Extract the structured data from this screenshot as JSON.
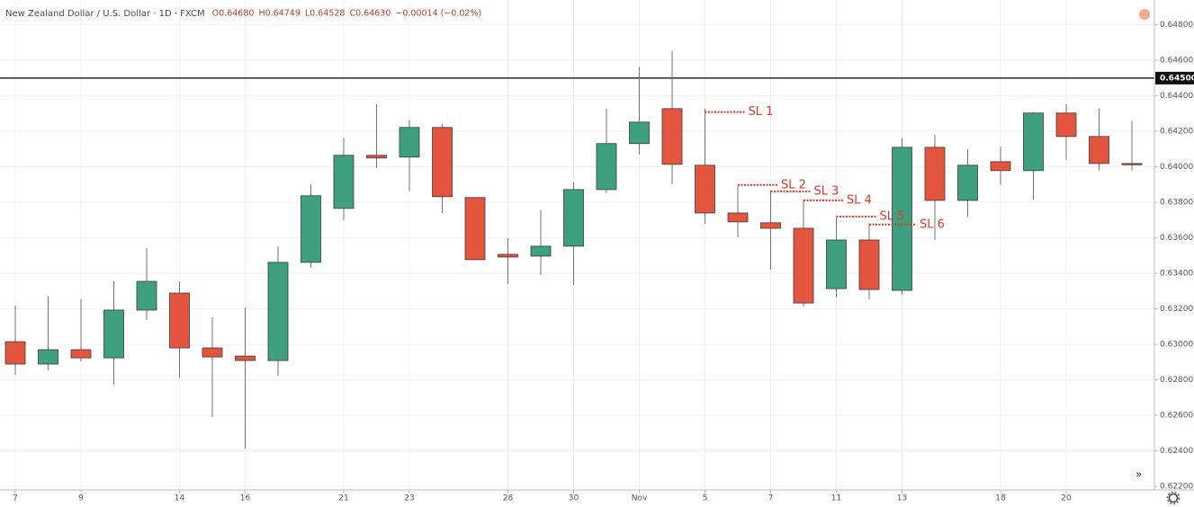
{
  "chart_data": {
    "type": "candlestick",
    "title": "New Zealand Dollar / U.S. Dollar · 1D · FXCM",
    "legend_text": [
      "O0.64680",
      "H0.64749",
      "L0.64528",
      "C0.64630",
      "−0.00014 (−0.02%)"
    ],
    "categories": [
      "7",
      null,
      "9",
      null,
      null,
      "14",
      null,
      "16",
      null,
      null,
      "21",
      null,
      "23",
      null,
      null,
      "28",
      null,
      "30",
      null,
      "Nov",
      null,
      "5",
      null,
      "7",
      null,
      "11",
      null,
      "13",
      null,
      null,
      "18",
      null,
      "20",
      null,
      null
    ],
    "open": [
      0.63015,
      0.62889,
      0.6297,
      0.62924,
      0.63193,
      0.63289,
      0.6298,
      0.62934,
      0.62909,
      0.63462,
      0.63766,
      0.64065,
      0.64055,
      0.64222,
      0.63827,
      0.63507,
      0.63497,
      0.63553,
      0.63872,
      0.64131,
      0.64328,
      0.64009,
      0.6374,
      0.63685,
      0.63654,
      0.63314,
      0.63588,
      0.63304,
      0.6411,
      0.63811,
      0.64029,
      0.63979,
      0.64303,
      0.64171,
      0.64019
    ],
    "high": [
      0.63218,
      0.63269,
      0.63254,
      0.63355,
      0.63543,
      0.63355,
      0.63152,
      0.63208,
      0.63553,
      0.63903,
      0.64161,
      0.64354,
      0.64263,
      0.64242,
      0.63827,
      0.63598,
      0.63756,
      0.63913,
      0.64328,
      0.64562,
      0.64653,
      0.64328,
      0.63892,
      0.63867,
      0.63816,
      0.63715,
      0.6368,
      0.64161,
      0.64181,
      0.641,
      0.64116,
      0.64308,
      0.64354,
      0.64328,
      0.64258
    ],
    "low": [
      0.62828,
      0.62853,
      0.62904,
      0.62772,
      0.63137,
      0.62813,
      0.6259,
      0.62412,
      0.62823,
      0.63431,
      0.637,
      0.63994,
      0.63862,
      0.6374,
      0.63477,
      0.6334,
      0.63391,
      0.63335,
      0.63852,
      0.6407,
      0.63903,
      0.6368,
      0.63603,
      0.63421,
      0.63213,
      0.63264,
      0.63254,
      0.63279,
      0.63588,
      0.6372,
      0.63898,
      0.63816,
      0.6404,
      0.63979,
      0.63979
    ],
    "close": [
      0.62889,
      0.6297,
      0.62924,
      0.63193,
      0.63355,
      0.6298,
      0.62929,
      0.62909,
      0.63462,
      0.63837,
      0.64065,
      0.6405,
      0.64222,
      0.63832,
      0.63477,
      0.63492,
      0.63553,
      0.63872,
      0.64131,
      0.64252,
      0.64014,
      0.6374,
      0.6369,
      0.63654,
      0.63233,
      0.63588,
      0.63309,
      0.6411,
      0.63811,
      0.64009,
      0.63979,
      0.64303,
      0.64171,
      0.64019,
      0.64014
    ],
    "up_color": "#3fa07f",
    "down_color": "#e4553f",
    "ylim": [
      0.6218,
      0.6494
    ],
    "yticks": [
      {
        "value": 0.622,
        "label": "0.62200"
      },
      {
        "value": 0.624,
        "label": "0.62400"
      },
      {
        "value": 0.626,
        "label": "0.62600"
      },
      {
        "value": 0.628,
        "label": "0.62800"
      },
      {
        "value": 0.63,
        "label": "0.63000"
      },
      {
        "value": 0.632,
        "label": "0.63200"
      },
      {
        "value": 0.634,
        "label": "0.63400"
      },
      {
        "value": 0.636,
        "label": "0.63600"
      },
      {
        "value": 0.638,
        "label": "0.63800"
      },
      {
        "value": 0.64,
        "label": "0.64000"
      },
      {
        "value": 0.642,
        "label": "0.64200"
      },
      {
        "value": 0.644,
        "label": "0.64400"
      },
      {
        "value": 0.646,
        "label": "0.64600"
      },
      {
        "value": 0.648,
        "label": "0.64800"
      }
    ],
    "hline": {
      "value": 0.645,
      "label": "0.64500"
    },
    "annotations": [
      {
        "text": "SL 1",
        "value": 0.64309
      },
      {
        "text": "SL 2",
        "value": 0.63898
      },
      {
        "text": "SL 3",
        "value": 0.63862
      },
      {
        "text": "SL 4",
        "value": 0.63811
      },
      {
        "text": "SL 5",
        "value": 0.6372
      },
      {
        "text": "SL 6",
        "value": 0.63675
      }
    ],
    "annotation_color": "#e0362a",
    "grid": true
  }
}
